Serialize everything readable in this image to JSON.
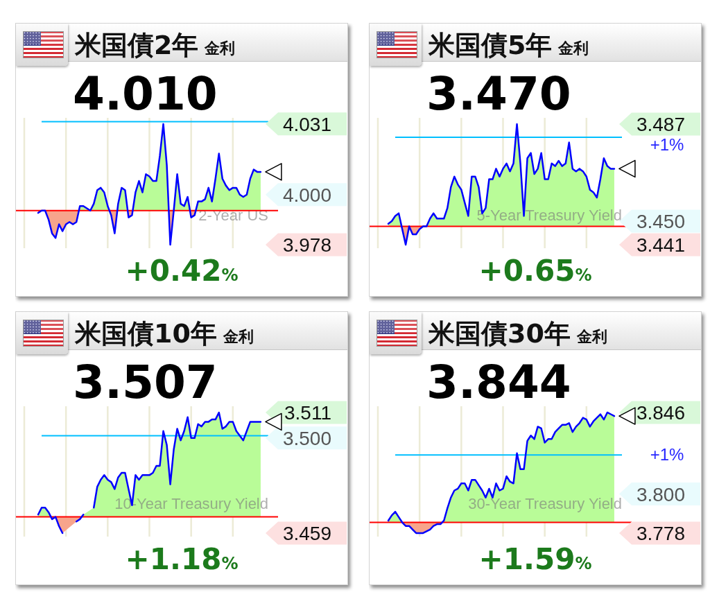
{
  "chart_data": [
    {
      "type": "area",
      "title": "米国債2年",
      "subtitle": "金利",
      "annotations": [
        "4.010",
        "+0.42%",
        "2-Year US"
      ],
      "categories": [
        null,
        null,
        null,
        null,
        null,
        null,
        null,
        null,
        null,
        null,
        null,
        null,
        null,
        null,
        null,
        null,
        null,
        null,
        null,
        null,
        null,
        null,
        null,
        null,
        null,
        null,
        null,
        null,
        null,
        null,
        null,
        null,
        null,
        null,
        null,
        null,
        null,
        null,
        null,
        null,
        null,
        null,
        null,
        null,
        null,
        null,
        null,
        null,
        null,
        null,
        null,
        null,
        null,
        null,
        null,
        null,
        null,
        null,
        null,
        null,
        null,
        null,
        null,
        null,
        null,
        null,
        null,
        null,
        null,
        null,
        null,
        null,
        null,
        null
      ],
      "series": [
        {
          "color": "#0000ff",
          "values": [
            null,
            null,
            null,
            null,
            3.992,
            3.993,
            3.993,
            3.989,
            3.983,
            3.981,
            3.987,
            3.984,
            3.987,
            3.988,
            3.987,
            3.988,
            3.995,
            3.995,
            3.994,
            3.993,
            3.996,
            4.002,
            4.003,
            4.001,
            3.995,
            3.991,
            3.983,
            3.996,
            4.003,
            4.002,
            3.99,
            3.991,
            4.001,
            4.006,
            4.001,
            4.009,
            4.008,
            4.006,
            4.006,
            4.017,
            4.031,
            4.013,
            3.978,
            3.993,
            4.009,
            3.996,
            3.995,
            3.999,
            3.99,
            3.991,
            3.997,
            3.997,
            3.998,
            4.003,
            3.997,
            4.007,
            4.018,
            4.007,
            4.004,
            4.002,
            4.003,
            4.003,
            4.0,
            3.999,
            4.0,
            4.007,
            4.011,
            4.01,
            4.01,
            null,
            null,
            null,
            null,
            null
          ]
        }
      ],
      "ylim": [
        3.9765,
        4.0337
      ],
      "yticks": [
        4.031,
        {
          "value": 4.0,
          "label": "4.000"
        },
        3.978
      ],
      "ref_lines": [
        {
          "axis": "y",
          "value": 3.993,
          "color": "#ff0000"
        },
        {
          "axis": "y",
          "value": 4.032,
          "color": "#00bfff"
        }
      ],
      "grid": "x"
    },
    {
      "type": "area",
      "title": "米国債5年",
      "subtitle": "金利",
      "annotations": [
        "3.470",
        "+0.65%",
        "5-Year Treasury Yield",
        "+1%"
      ],
      "categories": [
        null,
        null,
        null,
        null,
        null,
        null,
        null,
        null,
        null,
        null,
        null,
        null,
        null,
        null,
        null,
        null,
        null,
        null,
        null,
        null,
        null,
        null,
        null,
        null,
        null,
        null,
        null,
        null,
        null,
        null,
        null,
        null,
        null,
        null,
        null,
        null,
        null,
        null,
        null,
        null,
        null,
        null,
        null,
        null,
        null,
        null,
        null,
        null,
        null,
        null,
        null,
        null,
        null,
        null,
        null,
        null,
        null,
        null,
        null,
        null,
        null,
        null,
        null,
        null,
        null,
        null,
        null,
        null,
        null,
        null,
        null,
        null,
        null,
        null
      ],
      "series": [
        {
          "color": "#0000ff",
          "values": [
            null,
            null,
            null,
            3.449,
            3.45,
            3.452,
            3.453,
            3.447,
            3.441,
            3.448,
            3.445,
            3.445,
            3.447,
            3.448,
            3.448,
            3.451,
            3.453,
            3.451,
            3.451,
            3.451,
            3.455,
            3.463,
            3.467,
            3.464,
            3.462,
            3.457,
            3.452,
            3.467,
            3.467,
            3.463,
            3.453,
            3.455,
            3.466,
            3.466,
            3.47,
            3.467,
            3.47,
            3.472,
            3.469,
            3.472,
            3.487,
            3.472,
            3.452,
            3.474,
            3.476,
            3.468,
            3.47,
            3.476,
            3.466,
            3.466,
            3.472,
            3.471,
            3.473,
            3.471,
            3.472,
            3.48,
            3.47,
            3.469,
            3.47,
            3.469,
            3.467,
            3.462,
            3.461,
            3.459,
            3.466,
            3.474,
            3.471,
            3.47,
            3.47,
            null,
            null,
            null,
            null,
            null
          ]
        }
      ],
      "ylim": [
        3.4397,
        3.4894
      ],
      "yticks": [
        3.487,
        {
          "value": 3.45,
          "label": "3.450"
        },
        3.441
      ],
      "ref_lines": [
        {
          "axis": "y",
          "value": 3.448,
          "color": "#ff0000"
        },
        {
          "axis": "y",
          "value": 3.482,
          "color": "#00bfff"
        }
      ],
      "grid": "x"
    },
    {
      "type": "area",
      "title": "米国債10年",
      "subtitle": "金利",
      "annotations": [
        "3.507",
        "+1.18%",
        "10-Year Treasury Yield"
      ],
      "categories": [
        null,
        null,
        null,
        null,
        null,
        null,
        null,
        null,
        null,
        null,
        null,
        null,
        null,
        null,
        null,
        null,
        null,
        null,
        null,
        null,
        null,
        null,
        null,
        null,
        null,
        null,
        null,
        null,
        null,
        null,
        null,
        null,
        null,
        null,
        null,
        null,
        null,
        null,
        null,
        null,
        null,
        null,
        null,
        null,
        null,
        null,
        null,
        null,
        null,
        null,
        null,
        null,
        null,
        null,
        null,
        null,
        null,
        null,
        null,
        null,
        null,
        null,
        null,
        null,
        null,
        null,
        null,
        null,
        null,
        null,
        null,
        null,
        null,
        null
      ],
      "series": [
        {
          "color": "#0000ff",
          "values": [
            null,
            null,
            null,
            null,
            3.467,
            3.47,
            3.47,
            3.468,
            3.465,
            3.466,
            3.462,
            3.459,
            null,
            null,
            null,
            3.464,
            3.465,
            3.467,
            null,
            null,
            3.47,
            3.479,
            3.482,
            3.484,
            3.482,
            3.481,
            3.478,
            3.483,
            3.485,
            3.485,
            3.478,
            3.471,
            3.484,
            3.482,
            3.484,
            3.484,
            3.484,
            3.485,
            3.488,
            3.488,
            3.503,
            3.497,
            3.48,
            3.495,
            3.504,
            3.499,
            3.503,
            3.509,
            3.5,
            3.5,
            3.506,
            3.505,
            3.507,
            3.507,
            3.508,
            3.508,
            3.511,
            3.504,
            3.505,
            3.507,
            3.507,
            3.503,
            3.501,
            3.499,
            3.503,
            3.507,
            3.507,
            3.507,
            3.507,
            null,
            null,
            null,
            null,
            null
          ]
        }
      ],
      "ylim": [
        3.4575,
        3.5137
      ],
      "yticks": [
        3.511,
        {
          "value": 3.5,
          "label": "3.500"
        },
        3.459
      ],
      "ref_lines": [
        {
          "axis": "y",
          "value": 3.466,
          "color": "#ff0000"
        },
        {
          "axis": "y",
          "value": 3.501,
          "color": "#00bfff"
        }
      ],
      "grid": "x"
    },
    {
      "type": "area",
      "title": "米国債30年",
      "subtitle": "金利",
      "annotations": [
        "3.844",
        "+1.59%",
        "30-Year Treasury Yield",
        "+1%"
      ],
      "categories": [
        null,
        null,
        null,
        null,
        null,
        null,
        null,
        null,
        null,
        null,
        null,
        null,
        null,
        null,
        null,
        null,
        null,
        null,
        null,
        null,
        null,
        null,
        null,
        null,
        null,
        null,
        null,
        null,
        null,
        null,
        null,
        null,
        null,
        null,
        null,
        null,
        null,
        null,
        null,
        null,
        null,
        null,
        null,
        null,
        null,
        null,
        null,
        null,
        null,
        null,
        null,
        null,
        null,
        null,
        null,
        null,
        null,
        null,
        null,
        null,
        null,
        null,
        null,
        null,
        null,
        null,
        null,
        null,
        null,
        null,
        null,
        null,
        null,
        null
      ],
      "series": [
        {
          "color": "#0000ff",
          "values": [
            null,
            null,
            null,
            3.785,
            3.788,
            3.79,
            3.787,
            3.784,
            3.782,
            3.782,
            3.78,
            3.778,
            3.778,
            3.778,
            3.779,
            3.78,
            3.782,
            3.783,
            3.783,
            3.785,
            3.792,
            3.798,
            3.802,
            3.803,
            3.806,
            3.806,
            3.802,
            3.808,
            3.808,
            3.805,
            3.802,
            3.798,
            3.803,
            3.798,
            3.806,
            3.802,
            3.803,
            3.81,
            3.807,
            3.806,
            3.823,
            3.814,
            3.814,
            3.83,
            3.833,
            3.831,
            3.838,
            3.837,
            3.829,
            3.831,
            3.831,
            3.835,
            3.837,
            3.839,
            3.839,
            3.84,
            3.835,
            3.838,
            3.84,
            3.843,
            3.842,
            3.838,
            3.841,
            3.843,
            3.845,
            3.842,
            3.846,
            3.845,
            3.844,
            null,
            null,
            null,
            null,
            null
          ]
        }
      ],
      "ylim": [
        3.776,
        3.8495
      ],
      "yticks": [
        3.846,
        {
          "value": 3.8,
          "label": "3.800"
        },
        3.778
      ],
      "ref_lines": [
        {
          "axis": "y",
          "value": 3.784,
          "color": "#ff0000"
        },
        {
          "axis": "y",
          "value": 3.822,
          "color": "#00bfff"
        }
      ],
      "grid": "x"
    }
  ]
}
